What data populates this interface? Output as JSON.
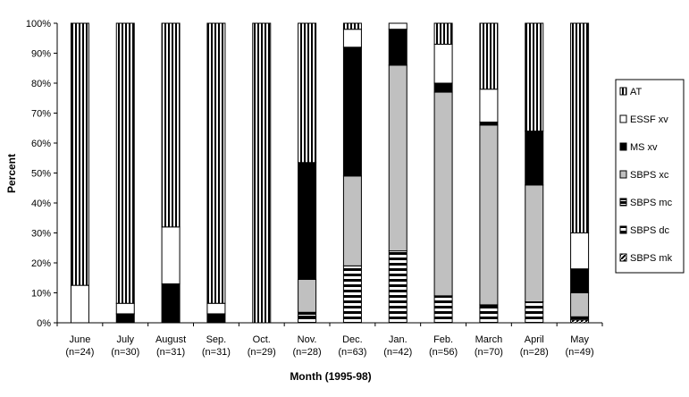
{
  "chart_data": {
    "type": "bar",
    "stacked": "percent",
    "xlabel": "Month (1995-98)",
    "ylabel": "Percent",
    "ylim": [
      0,
      100
    ],
    "yticks": [
      "0%",
      "10%",
      "20%",
      "30%",
      "40%",
      "50%",
      "60%",
      "70%",
      "80%",
      "90%",
      "100%"
    ],
    "categories": [
      "June",
      "July",
      "August",
      "Sep.",
      "Oct.",
      "Nov.",
      "Dec.",
      "Jan.",
      "Feb.",
      "March",
      "April",
      "May"
    ],
    "category_sublabels": [
      "(n=24)",
      "(n=30)",
      "(n=31)",
      "(n=31)",
      "(n=29)",
      "(n=28)",
      "(n=63)",
      "(n=42)",
      "(n=56)",
      "(n=70)",
      "(n=28)",
      "(n=49)"
    ],
    "grid": false,
    "legend_position": "right",
    "series": [
      {
        "name": "SBPS mk",
        "pattern": "diagonal",
        "values": [
          0,
          0,
          0,
          0,
          0,
          0,
          0,
          0,
          0,
          0,
          0,
          1
        ]
      },
      {
        "name": "SBPS dc",
        "pattern": "horizontal",
        "values": [
          0,
          0,
          0,
          0,
          0,
          2,
          19,
          24,
          9,
          5,
          7,
          1
        ]
      },
      {
        "name": "SBPS mc",
        "pattern": "horizontal-dark",
        "values": [
          0,
          0,
          0,
          0,
          0,
          1.5,
          0,
          0,
          0,
          1,
          0,
          0
        ]
      },
      {
        "name": "SBPS xc",
        "pattern": "gray",
        "values": [
          0,
          0,
          0,
          0,
          0,
          11,
          30,
          62,
          68,
          60,
          39,
          8
        ]
      },
      {
        "name": "MS xv",
        "pattern": "black",
        "values": [
          0,
          3,
          13,
          3,
          0,
          39,
          43,
          12,
          3,
          1,
          18,
          8
        ]
      },
      {
        "name": "ESSF xv",
        "pattern": "white",
        "values": [
          12.5,
          3.5,
          19,
          3.5,
          0,
          0,
          6,
          2,
          13,
          11,
          0,
          12
        ]
      },
      {
        "name": "AT",
        "pattern": "vertical",
        "values": [
          87.5,
          93.5,
          68,
          93.5,
          100,
          46.5,
          2,
          0,
          7,
          22,
          36,
          70
        ]
      }
    ],
    "legend_order": [
      "AT",
      "ESSF xv",
      "MS xv",
      "SBPS xc",
      "SBPS mc",
      "SBPS dc",
      "SBPS mk"
    ],
    "colors": {
      "axis": "#000000",
      "gray_fill": "#c0c0c0",
      "black_fill": "#000000",
      "white_fill": "#ffffff"
    }
  }
}
